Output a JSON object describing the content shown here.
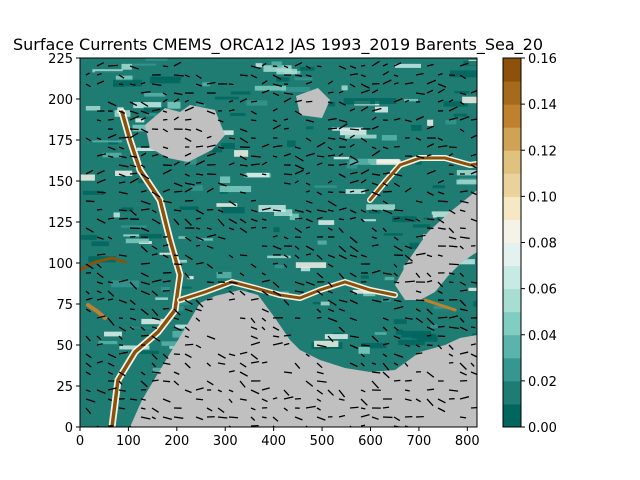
{
  "chart_data": {
    "type": "heatmap",
    "title": "Surface Currents CMEMS_ORCA12 JAS 1993_2019 Barents_Sea_20",
    "xlabel": "",
    "ylabel": "",
    "xlim": [
      0,
      820
    ],
    "ylim": [
      0,
      225
    ],
    "x_ticks": [
      "0",
      "100",
      "200",
      "300",
      "400",
      "500",
      "600",
      "700",
      "800"
    ],
    "y_ticks": [
      "0",
      "25",
      "50",
      "75",
      "100",
      "125",
      "150",
      "175",
      "200",
      "225"
    ],
    "colorbar": {
      "vmin": 0.0,
      "vmax": 0.16,
      "ticks": [
        "0.00",
        "0.02",
        "0.04",
        "0.06",
        "0.08",
        "0.10",
        "0.12",
        "0.14",
        "0.16"
      ],
      "levels": [
        "#01665e",
        "#1f7c73",
        "#35978f",
        "#5ab4ac",
        "#80cdc1",
        "#a8ddd4",
        "#c7eae5",
        "#e4f2ef",
        "#f5f2e8",
        "#f6e8c3",
        "#e9d29b",
        "#dfc27d",
        "#cfa256",
        "#bf812d",
        "#a66a1c",
        "#8c510a"
      ]
    },
    "land_color": "#c0c0c0",
    "vector_color": "#000000",
    "grid": false
  }
}
